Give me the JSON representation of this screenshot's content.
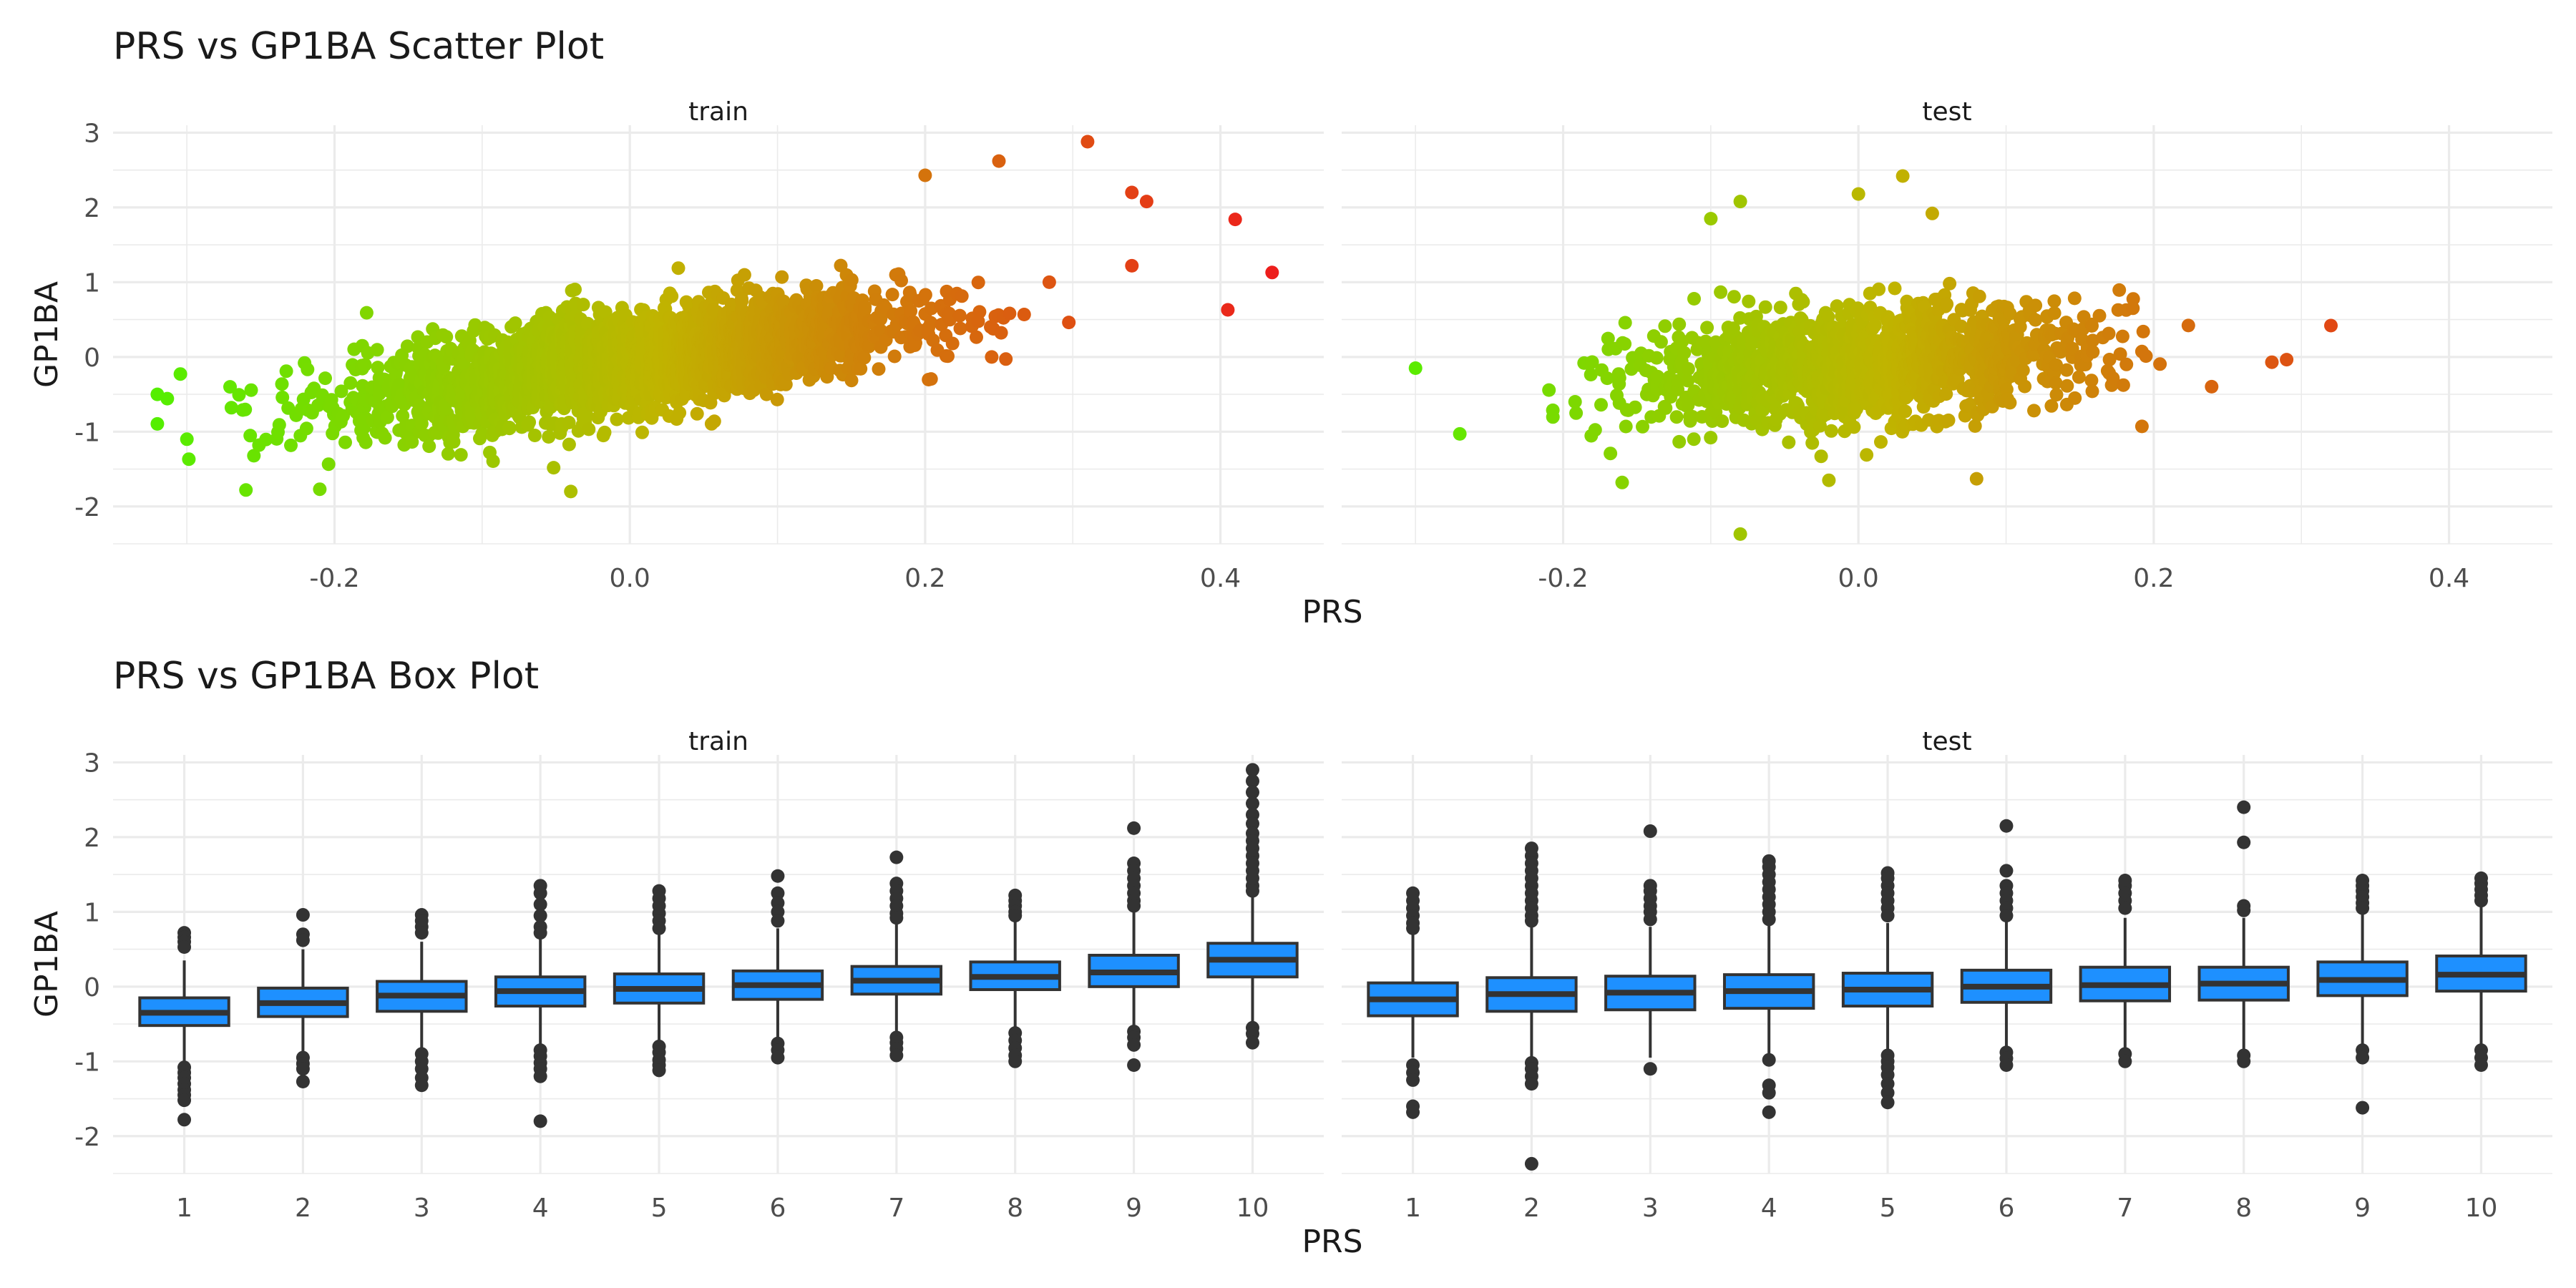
{
  "colors": {
    "low": "#55ee00",
    "mid": "#c0b400",
    "high": "#ee1c1c",
    "box_fill": "#1e90ff",
    "box_line": "#333333",
    "grid": "#ebebeb",
    "text": "#4d4d4d"
  },
  "chart_data": [
    {
      "type": "scatter",
      "title": "PRS vs GP1BA Scatter Plot",
      "xlabel": "PRS",
      "ylabel": "GP1BA",
      "facets": [
        "train",
        "test"
      ],
      "xlim": [
        -0.35,
        0.47
      ],
      "ylim": [
        -2.5,
        3.1
      ],
      "x_ticks": [
        -0.2,
        0.0,
        0.2,
        0.4
      ],
      "x_tick_labels": [
        "-0.2",
        "0.0",
        "0.2",
        "0.4"
      ],
      "y_ticks": [
        -2,
        -1,
        0,
        1,
        2,
        3
      ],
      "y_tick_labels": [
        "-2",
        "-1",
        "0",
        "1",
        "2",
        "3"
      ],
      "color_encoding": "PRS (green low → red high)",
      "legend": "none",
      "grid": true,
      "series": [
        {
          "facet": "train",
          "n_estimated": 3000,
          "prs_sd": 0.09,
          "slope": 2.8,
          "intercept": -0.05,
          "residual_sd": 0.32,
          "x_range": [
            -0.32,
            0.43
          ],
          "notable_points": [
            [
              0.31,
              2.88
            ],
            [
              0.25,
              2.62
            ],
            [
              0.2,
              2.43
            ],
            [
              0.34,
              2.2
            ],
            [
              0.35,
              2.08
            ],
            [
              0.41,
              1.84
            ],
            [
              0.435,
              1.13
            ],
            [
              0.405,
              0.63
            ],
            [
              0.34,
              1.22
            ],
            [
              -0.32,
              -0.5
            ],
            [
              -0.3,
              -1.1
            ],
            [
              -0.26,
              -1.78
            ],
            [
              -0.21,
              -1.77
            ],
            [
              -0.04,
              -1.8
            ]
          ]
        },
        {
          "facet": "test",
          "n_estimated": 1500,
          "prs_sd": 0.075,
          "slope": 1.35,
          "intercept": -0.1,
          "residual_sd": 0.36,
          "x_range": [
            -0.3,
            0.32
          ],
          "notable_points": [
            [
              -0.08,
              2.08
            ],
            [
              0.0,
              2.18
            ],
            [
              0.03,
              2.42
            ],
            [
              0.05,
              1.92
            ],
            [
              0.32,
              0.42
            ],
            [
              0.28,
              -0.07
            ],
            [
              -0.3,
              -0.15
            ],
            [
              -0.27,
              -1.03
            ],
            [
              -0.16,
              -1.68
            ],
            [
              -0.08,
              -2.37
            ],
            [
              0.08,
              -1.63
            ],
            [
              -0.02,
              -1.65
            ],
            [
              -0.1,
              1.85
            ]
          ]
        }
      ]
    },
    {
      "type": "box",
      "title": "PRS vs GP1BA Box Plot",
      "xlabel": "PRS",
      "ylabel": "GP1BA",
      "facets": [
        "train",
        "test"
      ],
      "categories": [
        "1",
        "2",
        "3",
        "4",
        "5",
        "6",
        "7",
        "8",
        "9",
        "10"
      ],
      "ylim": [
        -2.5,
        3.1
      ],
      "y_ticks": [
        -2,
        -1,
        0,
        1,
        2,
        3
      ],
      "y_tick_labels": [
        "-2",
        "-1",
        "0",
        "1",
        "2",
        "3"
      ],
      "grid": true,
      "series": [
        {
          "facet": "train",
          "boxes": [
            {
              "q1": -0.52,
              "median": -0.35,
              "q3": -0.15,
              "lo": -1.0,
              "hi": 0.35,
              "outliers": [
                0.72,
                0.66,
                0.6,
                0.53,
                -1.08,
                -1.15,
                -1.22,
                -1.3,
                -1.38,
                -1.45,
                -1.52,
                -1.78
              ]
            },
            {
              "q1": -0.4,
              "median": -0.22,
              "q3": -0.02,
              "lo": -0.88,
              "hi": 0.5,
              "outliers": [
                0.96,
                0.7,
                0.62,
                -0.95,
                -1.03,
                -1.1,
                -1.27
              ]
            },
            {
              "q1": -0.33,
              "median": -0.12,
              "q3": 0.07,
              "lo": -0.85,
              "hi": 0.6,
              "outliers": [
                0.96,
                0.88,
                0.8,
                0.72,
                -0.9,
                -1.0,
                -1.1,
                -1.22,
                -1.32
              ]
            },
            {
              "q1": -0.26,
              "median": -0.06,
              "q3": 0.13,
              "lo": -0.8,
              "hi": 0.65,
              "outliers": [
                1.35,
                1.25,
                1.1,
                0.95,
                0.8,
                0.72,
                -0.85,
                -0.93,
                -1.02,
                -1.1,
                -1.2,
                -1.8
              ]
            },
            {
              "q1": -0.22,
              "median": -0.03,
              "q3": 0.17,
              "lo": -0.75,
              "hi": 0.7,
              "outliers": [
                1.28,
                1.18,
                1.08,
                0.98,
                0.88,
                0.78,
                -0.8,
                -0.88,
                -0.98,
                -1.05,
                -1.12
              ]
            },
            {
              "q1": -0.17,
              "median": 0.02,
              "q3": 0.21,
              "lo": -0.7,
              "hi": 0.78,
              "outliers": [
                1.48,
                1.25,
                1.12,
                1.0,
                0.88,
                -0.76,
                -0.85,
                -0.95
              ]
            },
            {
              "q1": -0.1,
              "median": 0.08,
              "q3": 0.27,
              "lo": -0.6,
              "hi": 0.85,
              "outliers": [
                1.73,
                1.38,
                1.28,
                1.18,
                1.08,
                0.98,
                0.92,
                -0.68,
                -0.75,
                -0.83,
                -0.92
              ]
            },
            {
              "q1": -0.04,
              "median": 0.13,
              "q3": 0.33,
              "lo": -0.55,
              "hi": 0.9,
              "outliers": [
                1.22,
                1.15,
                1.08,
                1.0,
                0.95,
                -0.62,
                -0.72,
                -0.82,
                -0.92,
                -1.0
              ]
            },
            {
              "q1": 0.0,
              "median": 0.19,
              "q3": 0.42,
              "lo": -0.55,
              "hi": 1.0,
              "outliers": [
                2.12,
                1.65,
                1.55,
                1.45,
                1.35,
                1.25,
                1.15,
                1.08,
                -0.6,
                -0.68,
                -0.78,
                -1.05
              ]
            },
            {
              "q1": 0.13,
              "median": 0.36,
              "q3": 0.58,
              "lo": -0.5,
              "hi": 1.2,
              "outliers": [
                2.9,
                2.75,
                2.6,
                2.45,
                2.3,
                2.18,
                2.05,
                1.95,
                1.85,
                1.75,
                1.65,
                1.55,
                1.45,
                1.35,
                1.28,
                -0.55,
                -0.63,
                -0.75
              ]
            }
          ]
        },
        {
          "facet": "test",
          "boxes": [
            {
              "q1": -0.39,
              "median": -0.17,
              "q3": 0.05,
              "lo": -0.95,
              "hi": 0.7,
              "outliers": [
                1.25,
                1.15,
                1.05,
                0.95,
                0.85,
                0.78,
                -1.05,
                -1.15,
                -1.25,
                -1.6,
                -1.68
              ]
            },
            {
              "q1": -0.33,
              "median": -0.1,
              "q3": 0.12,
              "lo": -0.95,
              "hi": 0.8,
              "outliers": [
                1.85,
                1.75,
                1.65,
                1.55,
                1.45,
                1.35,
                1.25,
                1.15,
                1.05,
                0.95,
                0.88,
                -1.02,
                -1.1,
                -1.2,
                -1.3,
                -2.37
              ]
            },
            {
              "q1": -0.31,
              "median": -0.08,
              "q3": 0.14,
              "lo": -0.95,
              "hi": 0.8,
              "outliers": [
                2.08,
                1.35,
                1.28,
                1.18,
                1.08,
                1.0,
                0.9,
                -1.1
              ]
            },
            {
              "q1": -0.29,
              "median": -0.06,
              "q3": 0.16,
              "lo": -0.95,
              "hi": 0.82,
              "outliers": [
                1.68,
                1.6,
                1.5,
                1.4,
                1.3,
                1.2,
                1.1,
                1.0,
                0.9,
                -0.98,
                -1.32,
                -1.42,
                -1.68
              ]
            },
            {
              "q1": -0.26,
              "median": -0.04,
              "q3": 0.18,
              "lo": -0.9,
              "hi": 0.85,
              "outliers": [
                1.52,
                1.45,
                1.35,
                1.25,
                1.15,
                1.05,
                0.95,
                -0.92,
                -1.0,
                -1.08,
                -1.18,
                -1.3,
                -1.42,
                -1.55
              ]
            },
            {
              "q1": -0.21,
              "median": 0.0,
              "q3": 0.22,
              "lo": -0.85,
              "hi": 0.88,
              "outliers": [
                2.15,
                1.55,
                1.35,
                1.25,
                1.15,
                1.05,
                0.95,
                -0.88,
                -0.96,
                -1.05
              ]
            },
            {
              "q1": -0.19,
              "median": 0.02,
              "q3": 0.26,
              "lo": -0.85,
              "hi": 0.92,
              "outliers": [
                1.42,
                1.35,
                1.25,
                1.15,
                1.05,
                -0.9,
                -1.0
              ]
            },
            {
              "q1": -0.18,
              "median": 0.04,
              "q3": 0.26,
              "lo": -0.85,
              "hi": 0.92,
              "outliers": [
                2.4,
                1.93,
                1.08,
                1.02,
                -0.92,
                -1.0
              ]
            },
            {
              "q1": -0.12,
              "median": 0.09,
              "q3": 0.33,
              "lo": -0.8,
              "hi": 1.0,
              "outliers": [
                1.42,
                1.35,
                1.28,
                1.2,
                1.12,
                1.05,
                -0.85,
                -0.95,
                -1.62
              ]
            },
            {
              "q1": -0.06,
              "median": 0.16,
              "q3": 0.41,
              "lo": -0.8,
              "hi": 1.08,
              "outliers": [
                1.45,
                1.38,
                1.3,
                1.22,
                1.15,
                -0.85,
                -0.95,
                -1.05
              ]
            }
          ]
        }
      ]
    }
  ]
}
